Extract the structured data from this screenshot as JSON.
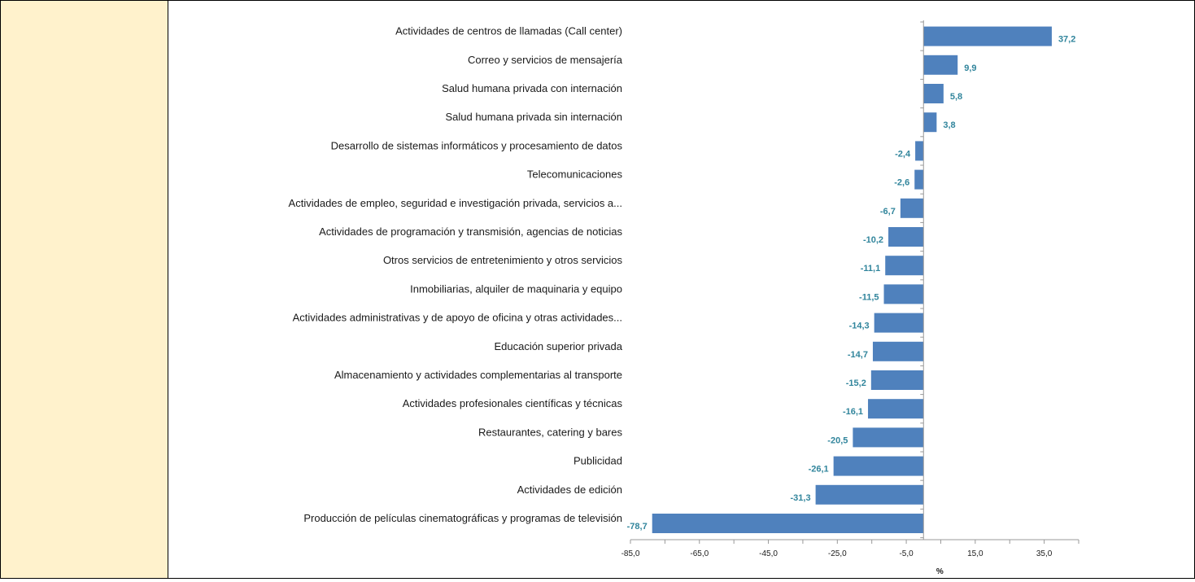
{
  "chart_data": {
    "type": "bar",
    "orientation": "horizontal",
    "title": "",
    "xlabel": "%",
    "ylabel": "",
    "xlim": [
      -85,
      45
    ],
    "xticks": [
      "-85,0",
      "-65,0",
      "-45,0",
      "-25,0",
      "-5,0",
      "15,0",
      "35,0"
    ],
    "xtick_values": [
      -85,
      -65,
      -45,
      -25,
      -5,
      15,
      35
    ],
    "grid": false,
    "legend": "none",
    "bar_color": "#4f81bd",
    "label_color": "#31859c",
    "categories": [
      "Actividades de centros de llamadas (Call center)",
      "Correo y servicios de mensajería",
      "Salud humana privada con internación",
      "Salud humana privada sin internación",
      "Desarrollo de sistemas informáticos y procesamiento de datos",
      "Telecomunicaciones",
      "Actividades de empleo, seguridad e investigación privada, servicios a...",
      "Actividades de programación y transmisión,  agencias de noticias",
      "Otros servicios de entretenimiento y otros servicios",
      "Inmobiliarias, alquiler de maquinaria y equipo",
      "Actividades administrativas y de apoyo de oficina y otras actividades...",
      "Educación superior privada",
      "Almacenamiento y actividades complementarias al transporte",
      "Actividades profesionales científicas y técnicas",
      "Restaurantes, catering y bares",
      "Publicidad",
      "Actividades de edición",
      "Producción de películas cinematográficas y programas de televisión"
    ],
    "values": [
      37.2,
      9.9,
      5.8,
      3.8,
      -2.4,
      -2.6,
      -6.7,
      -10.2,
      -11.1,
      -11.5,
      -14.3,
      -14.7,
      -15.2,
      -16.1,
      -20.5,
      -26.1,
      -31.3,
      -78.7
    ],
    "value_labels": [
      "37,2",
      "9,9",
      "5,8",
      "3,8",
      "-2,4",
      "-2,6",
      "-6,7",
      "-10,2",
      "-11,1",
      "-11,5",
      "-14,3",
      "-14,7",
      "-15,2",
      "-16,1",
      "-20,5",
      "-26,1",
      "-31,3",
      "-78,7"
    ]
  }
}
